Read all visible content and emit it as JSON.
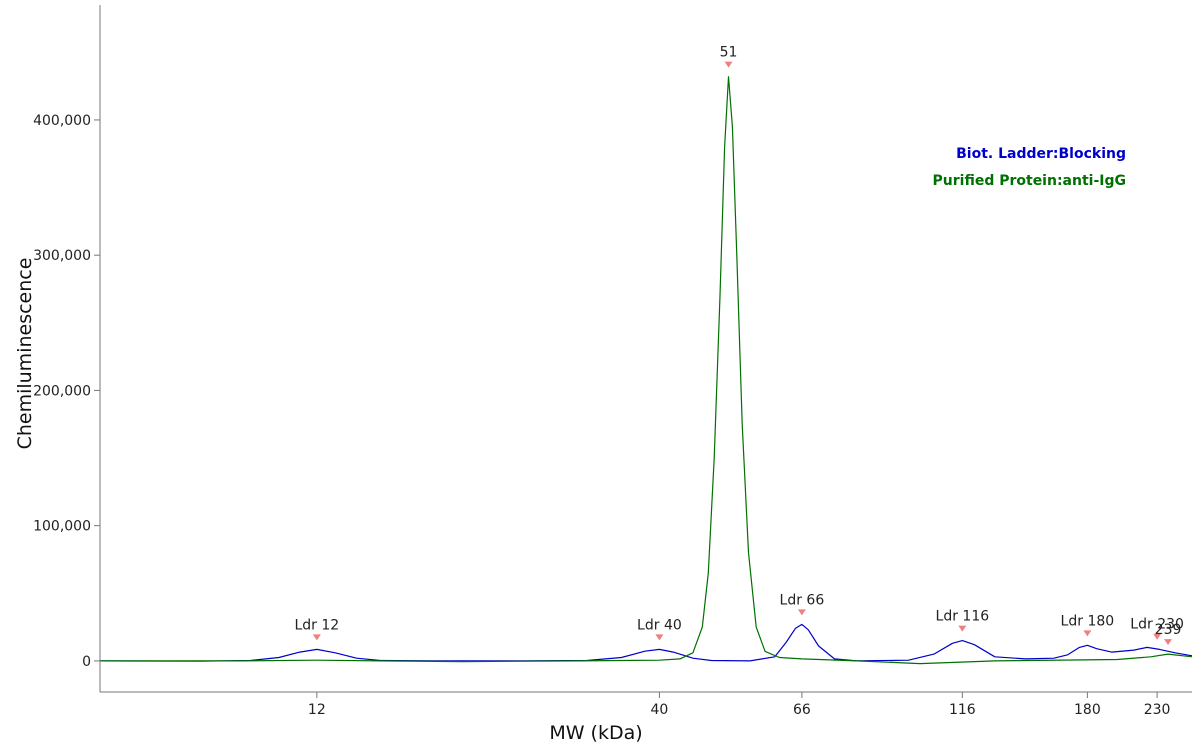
{
  "chart_data": {
    "type": "line",
    "xlabel": "MW (kDa)",
    "ylabel": "Chemiluminescence",
    "x_scale": "log",
    "xlim": [
      5.6,
      260
    ],
    "ylim": [
      -23000,
      485000
    ],
    "x_ticks": [
      12,
      40,
      66,
      116,
      180,
      230
    ],
    "x_tick_labels": [
      "12",
      "40",
      "66",
      "116",
      "180",
      "230"
    ],
    "y_ticks": [
      0,
      100000,
      200000,
      300000,
      400000
    ],
    "y_tick_labels": [
      "0",
      "100,000",
      "200,000",
      "300,000",
      "400,000"
    ],
    "grid": false,
    "legend_position": "top-right",
    "series": [
      {
        "name": "Biot. Ladder:Blocking",
        "color": "#0000cc",
        "points": [
          [
            5.6,
            0
          ],
          [
            8,
            -200
          ],
          [
            9.5,
            300
          ],
          [
            10.5,
            2500
          ],
          [
            11.3,
            6500
          ],
          [
            12,
            8500
          ],
          [
            12.8,
            6000
          ],
          [
            13.8,
            2000
          ],
          [
            15,
            300
          ],
          [
            18,
            0
          ],
          [
            25,
            0
          ],
          [
            31,
            300
          ],
          [
            35,
            2500
          ],
          [
            38,
            7200
          ],
          [
            40,
            8500
          ],
          [
            42,
            6500
          ],
          [
            45,
            2000
          ],
          [
            48,
            300
          ],
          [
            55,
            0
          ],
          [
            60,
            3000
          ],
          [
            62.5,
            14000
          ],
          [
            64.5,
            24000
          ],
          [
            66,
            27000
          ],
          [
            67.5,
            23000
          ],
          [
            70,
            11000
          ],
          [
            74,
            1500
          ],
          [
            80,
            0
          ],
          [
            96,
            500
          ],
          [
            105,
            5000
          ],
          [
            112,
            13000
          ],
          [
            116,
            15000
          ],
          [
            121,
            12000
          ],
          [
            130,
            3000
          ],
          [
            145,
            1500
          ],
          [
            160,
            2000
          ],
          [
            168,
            4500
          ],
          [
            175,
            10000
          ],
          [
            180,
            11500
          ],
          [
            186,
            9000
          ],
          [
            196,
            6500
          ],
          [
            212,
            8000
          ],
          [
            222,
            10000
          ],
          [
            232,
            8500
          ],
          [
            245,
            6000
          ],
          [
            260,
            3800
          ]
        ]
      },
      {
        "name": "Purified Protein:anti-IgG",
        "color": "#007000",
        "points": [
          [
            5.6,
            0
          ],
          [
            9,
            0
          ],
          [
            12,
            500
          ],
          [
            15,
            0
          ],
          [
            20,
            -500
          ],
          [
            30,
            0
          ],
          [
            40,
            500
          ],
          [
            43,
            1500
          ],
          [
            45,
            6000
          ],
          [
            46.5,
            25000
          ],
          [
            47.5,
            65000
          ],
          [
            48.5,
            150000
          ],
          [
            49.5,
            270000
          ],
          [
            50.3,
            380000
          ],
          [
            51,
            432000
          ],
          [
            51.7,
            395000
          ],
          [
            52.5,
            300000
          ],
          [
            53.5,
            175000
          ],
          [
            54.7,
            80000
          ],
          [
            56.2,
            25000
          ],
          [
            58,
            7000
          ],
          [
            61,
            2500
          ],
          [
            66,
            1500
          ],
          [
            80,
            0
          ],
          [
            100,
            -2000
          ],
          [
            130,
            0
          ],
          [
            200,
            1000
          ],
          [
            225,
            3000
          ],
          [
            239,
            5000
          ],
          [
            260,
            3000
          ]
        ]
      }
    ],
    "peak_markers": [
      {
        "label": "Ldr 12",
        "x": 12,
        "y": 8500
      },
      {
        "label": "Ldr 40",
        "x": 40,
        "y": 8500
      },
      {
        "label": "51",
        "x": 51,
        "y": 432000
      },
      {
        "label": "Ldr 66",
        "x": 66,
        "y": 27000
      },
      {
        "label": "Ldr 116",
        "x": 116,
        "y": 15000
      },
      {
        "label": "Ldr 180",
        "x": 180,
        "y": 11500
      },
      {
        "label": "Ldr 230",
        "x": 230,
        "y": 9000
      },
      {
        "label": "239",
        "x": 239,
        "y": 5000
      }
    ],
    "marker_color": "#f08080"
  }
}
